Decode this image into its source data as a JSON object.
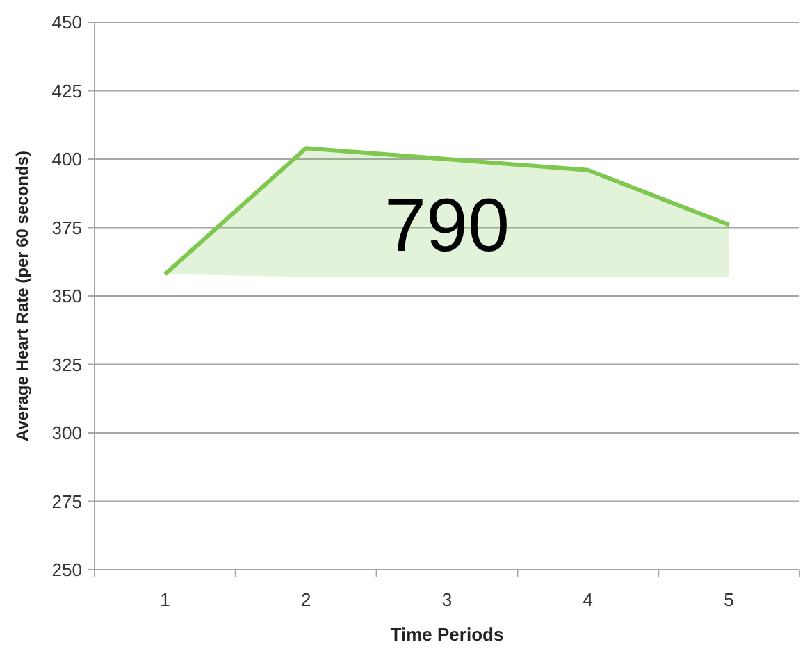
{
  "chart_data": {
    "type": "line",
    "xlabel": "Time Periods",
    "ylabel": "Average Heart Rate (per 60 seconds)",
    "categories": [
      "1",
      "2",
      "3",
      "4",
      "5"
    ],
    "series": [
      {
        "color": "#7ec850",
        "values": [
          358,
          404,
          400,
          396,
          376
        ],
        "lower": [
          358,
          357,
          357,
          357,
          357
        ],
        "upper": [
          358,
          404,
          400,
          396,
          376
        ]
      }
    ],
    "ylim": [
      250,
      450
    ],
    "yticks": [
      250,
      275,
      300,
      325,
      350,
      375,
      400,
      425,
      450
    ],
    "grid": "y",
    "marker": "none",
    "line_style": "solid",
    "annotations": [
      "790"
    ]
  }
}
